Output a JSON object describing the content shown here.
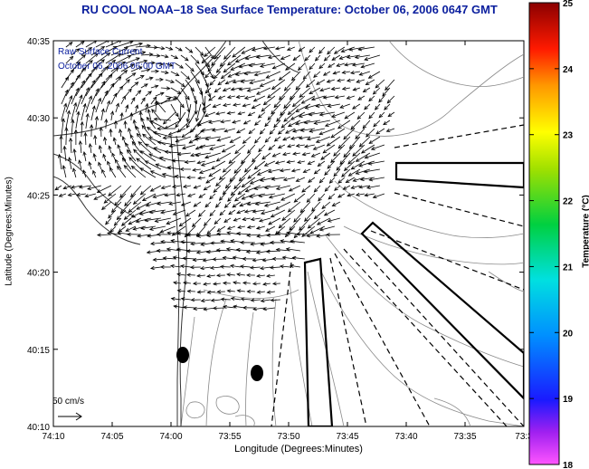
{
  "title": "RU COOL  NOAA–18  Sea Surface Temperature:  October 06, 2006 0647 GMT",
  "annotations": {
    "line1": "Raw Surface Current",
    "line2": "October 06, 2006 06:00 GMT"
  },
  "scale": {
    "label": "50 cm/s"
  },
  "axes": {
    "xlabel": "Longitude (Degrees:Minutes)",
    "ylabel": "Latitude (Degrees:Minutes)",
    "xticks": [
      "74:10",
      "74:05",
      "74:00",
      "73:55",
      "73:50",
      "73:45",
      "73:40",
      "73:35",
      "73:3"
    ],
    "yticks": [
      "40:35",
      "40:30",
      "40:25",
      "40:20",
      "40:15",
      "40:10"
    ]
  },
  "colorbar": {
    "title": "Temperature (°C)",
    "ticks": [
      "25",
      "24",
      "23",
      "22",
      "21",
      "20",
      "19",
      "18"
    ],
    "range": [
      18,
      25
    ]
  },
  "colors": {
    "title": "#0b1f9e",
    "contour": "#8a8a8a",
    "coast": "#333333",
    "arrow": "#000000"
  }
}
